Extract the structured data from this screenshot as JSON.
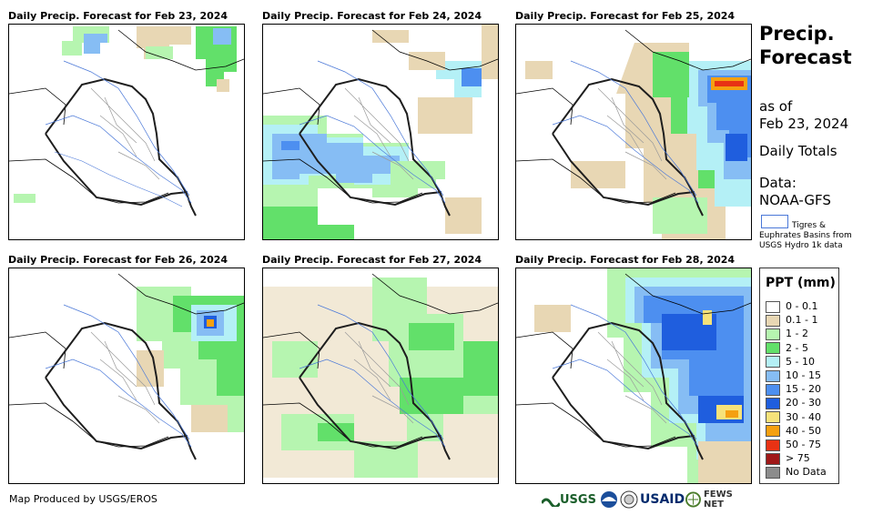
{
  "panels": [
    {
      "title": "Daily Precip. Forecast for Feb 23, 2024"
    },
    {
      "title": "Daily Precip. Forecast for Feb 24, 2024"
    },
    {
      "title": "Daily Precip. Forecast for Feb 25, 2024"
    },
    {
      "title": "Daily Precip. Forecast for Feb 26, 2024"
    },
    {
      "title": "Daily Precip. Forecast for Feb 27, 2024"
    },
    {
      "title": "Daily Precip. Forecast for Feb 28, 2024"
    }
  ],
  "sidebar": {
    "title_line1": "Precip.",
    "title_line2": "Forecast",
    "as_of": "as of",
    "date": "Feb 23, 2024",
    "totals": "Daily Totals",
    "data_label": "Data:",
    "data_source": "NOAA-GFS",
    "basin_line1": "Tigres &",
    "basin_line2": "Euphrates Basins from",
    "basin_line3": "USGS Hydro 1k data"
  },
  "legend": {
    "title": "PPT (mm)",
    "items": [
      {
        "label": "0 - 0.1",
        "color": "#ffffff"
      },
      {
        "label": "0.1 - 1",
        "color": "#e8d7b4"
      },
      {
        "label": "1 - 2",
        "color": "#b6f5b0"
      },
      {
        "label": "2 - 5",
        "color": "#62e06a"
      },
      {
        "label": "5 - 10",
        "color": "#b4f0f6"
      },
      {
        "label": "10 - 15",
        "color": "#86bdf4"
      },
      {
        "label": "15 - 20",
        "color": "#4d8ff0"
      },
      {
        "label": "20 - 30",
        "color": "#1f5ede"
      },
      {
        "label": "30 - 40",
        "color": "#f6e27a"
      },
      {
        "label": "40 - 50",
        "color": "#f5a010"
      },
      {
        "label": "50 - 75",
        "color": "#e83214"
      },
      {
        "label": "> 75",
        "color": "#a01818"
      },
      {
        "label": "No Data",
        "color": "#8c8c8c"
      }
    ]
  },
  "footer": {
    "credit": "Map Produced by USGS/EROS"
  },
  "logos": {
    "usgs": "USGS",
    "usaid": "USAID",
    "fews": "FEWS NET"
  }
}
